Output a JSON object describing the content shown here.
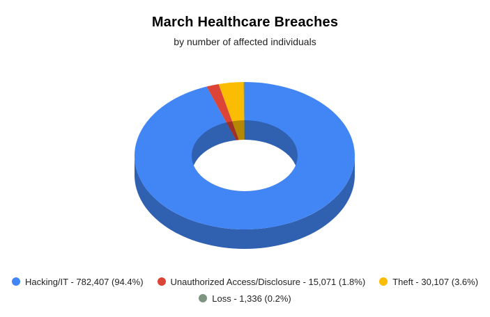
{
  "header": {
    "title": "March Healthcare Breaches",
    "subtitle": "by number of affected individuals"
  },
  "legend": {
    "items": [
      {
        "label": "Hacking/IT - 782,407 (94.4%)",
        "color": "#4285f4"
      },
      {
        "label": "Unauthorized Access/Disclosure - 15,071 (1.8%)",
        "color": "#db4437"
      },
      {
        "label": "Theft - 30,107 (3.6%)",
        "color": "#fbbc04"
      },
      {
        "label": "Loss - 1,336 (0.2%)",
        "color": "#7d9682"
      }
    ]
  },
  "chart_data": {
    "type": "pie",
    "subtype": "donut-3d",
    "title": "March Healthcare Breaches",
    "subtitle": "by number of affected individuals",
    "categories": [
      "Hacking/IT",
      "Unauthorized Access/Disclosure",
      "Theft",
      "Loss"
    ],
    "values": [
      782407,
      15071,
      30107,
      1336
    ],
    "percentages": [
      94.4,
      1.8,
      3.6,
      0.2
    ],
    "colors": [
      "#4285f4",
      "#db4437",
      "#fbbc04",
      "#7d9682"
    ],
    "start_angle_deg": 0,
    "direction": "clockwise",
    "legend_position": "bottom",
    "background": "#ffffff"
  }
}
